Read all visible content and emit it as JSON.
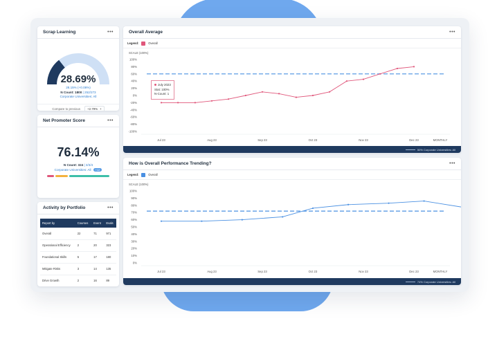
{
  "colors": {
    "accent": "#6fa8ee",
    "navy": "#1f3a5f",
    "pink": "#e0577b",
    "blue": "#4a90e2",
    "dashed_target": "#4a90e2",
    "gauge_fill": "#1f3a5f",
    "gauge_track": "#cfe0f5"
  },
  "scrap": {
    "title": "Scrap Learning",
    "menu": "•••",
    "value": "28.69%",
    "gauge_fraction": 0.2869,
    "change": "28.15% (+0.08%)",
    "count": "N Count: 1800",
    "count_extra": " | 252/273",
    "org": "Corporate Universities: All",
    "compare_label": "Compare to previous",
    "compare_value": "+2.79%",
    "compare_sign": "+"
  },
  "nps": {
    "title": "Net Promoter Score",
    "menu": "•••",
    "value": "76.14%",
    "count": "N Count: 324",
    "count_extra": " | 3/3/4",
    "org": "Corporate Universities: All",
    "badge": "+12",
    "bar_segments": [
      {
        "color": "#e0577b",
        "fraction": 0.12
      },
      {
        "color": "#f3b23e",
        "fraction": 0.2
      },
      {
        "color": "#3dbfa8",
        "fraction": 0.68
      }
    ]
  },
  "activity": {
    "title": "Activity by Portfolio",
    "menu": "•••",
    "headers": [
      "Report by",
      "Courses",
      "Event",
      "Evals"
    ],
    "rows": [
      [
        "Overall",
        "22",
        "71",
        "971"
      ],
      [
        "Operational Efficiency",
        "2",
        "20",
        "323"
      ],
      [
        "Foundational Skills",
        "5",
        "17",
        "180"
      ],
      [
        "Mitigate Risks",
        "3",
        "14",
        "135"
      ],
      [
        "Drive Growth",
        "2",
        "16",
        "89"
      ]
    ]
  },
  "avg": {
    "title": "Overall Average",
    "menu": "•••",
    "legend_label": "Legend:",
    "legend_item": "Overall",
    "scale": "SCALE (100%)",
    "footer": "50%  Corporate Universities: All",
    "tooltip": {
      "month": "July 2023",
      "stat": "Stat: 100%",
      "count": "N-Count: 1"
    },
    "frequency": "MONTHLY"
  },
  "trend": {
    "title": "How is Overall Performance Trending?",
    "menu": "•••",
    "legend_label": "Legend:",
    "legend_item": "Overall",
    "scale": "SCALE (100%)",
    "footer": "74%  Corporate Universities: All",
    "frequency": "MONTHLY"
  },
  "chart_data": [
    {
      "type": "line",
      "title": "Overall Average",
      "ylabel": "SCALE (100%)",
      "x_ticks": [
        "Jul 23",
        "Aug 23",
        "Sep 23",
        "Oct 23",
        "Nov 23",
        "Dec 23"
      ],
      "y_ticks": [
        "100%",
        "80%",
        "60%",
        "40%",
        "20%",
        "0%",
        "-20%",
        "-40%",
        "-60%",
        "-80%",
        "-100%"
      ],
      "ylim": [
        -100,
        100
      ],
      "target": 60,
      "series": [
        {
          "name": "Overall",
          "x": [
            0,
            0.33,
            0.67,
            1,
            1.33,
            1.67,
            2,
            2.33,
            2.67,
            3,
            3.33,
            3.67,
            4,
            4.33,
            4.67,
            5
          ],
          "values": [
            -20,
            -20,
            -20,
            -15,
            -10,
            0,
            10,
            5,
            -5,
            0,
            10,
            40,
            45,
            60,
            75,
            80
          ]
        }
      ]
    },
    {
      "type": "line",
      "title": "How is Overall Performance Trending?",
      "ylabel": "SCALE (100%)",
      "x_ticks": [
        "Jul 23",
        "Aug 23",
        "Sep 23",
        "Oct 23",
        "Nov 23",
        "Dec 23"
      ],
      "y_ticks": [
        "100%",
        "90%",
        "80%",
        "70%",
        "60%",
        "50%",
        "40%",
        "30%",
        "20%",
        "10%",
        "0%"
      ],
      "ylim": [
        0,
        100
      ],
      "target": 72,
      "series": [
        {
          "name": "Overall",
          "x": [
            0,
            0.8,
            1.6,
            2.4,
            3,
            3.7,
            4.5,
            5.2,
            6
          ],
          "values": [
            58,
            58,
            60,
            64,
            76,
            81,
            83,
            86,
            77
          ]
        }
      ]
    }
  ]
}
